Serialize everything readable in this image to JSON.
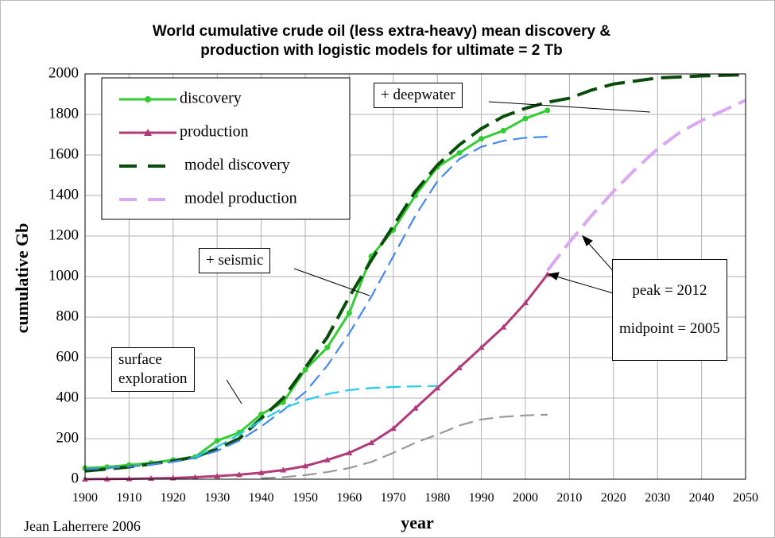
{
  "chart_data": {
    "type": "line",
    "title": "World cumulative crude oil (less extra-heavy) mean discovery &\nproduction with logistic models for ultimate = 2 Tb",
    "x_label": "year",
    "y_label": "cumulative Gb",
    "x": [
      1900,
      1905,
      1910,
      1915,
      1920,
      1925,
      1930,
      1935,
      1940,
      1945,
      1950,
      1955,
      1960,
      1965,
      1970,
      1975,
      1980,
      1985,
      1990,
      1995,
      2000,
      2005,
      2010,
      2015,
      2020,
      2025,
      2030,
      2035,
      2040,
      2045,
      2050
    ],
    "series": [
      {
        "name": "discovery",
        "color": "#33cc33",
        "style": "solid",
        "marker": "circle",
        "values": [
          55,
          60,
          70,
          80,
          95,
          110,
          190,
          230,
          320,
          380,
          540,
          650,
          820,
          1100,
          1230,
          1400,
          1540,
          1610,
          1680,
          1720,
          1780,
          1820,
          null,
          null,
          null,
          null,
          null,
          null,
          null,
          null,
          null
        ]
      },
      {
        "name": "production",
        "color": "#b03a7a",
        "style": "solid",
        "marker": "triangle",
        "values": [
          0,
          1,
          2,
          4,
          6,
          10,
          15,
          22,
          32,
          45,
          65,
          95,
          130,
          180,
          250,
          350,
          450,
          550,
          650,
          750,
          870,
          1010,
          null,
          null,
          null,
          null,
          null,
          null,
          null,
          null,
          null
        ]
      },
      {
        "name": "model discovery",
        "color": "#0a4d0a",
        "style": "dashed",
        "values": [
          40,
          50,
          60,
          75,
          90,
          110,
          150,
          200,
          300,
          400,
          550,
          700,
          900,
          1080,
          1250,
          1420,
          1550,
          1650,
          1730,
          1790,
          1830,
          1860,
          1880,
          1920,
          1950,
          1965,
          1980,
          1985,
          1990,
          1993,
          1995
        ]
      },
      {
        "name": "model production",
        "color": "#d9a8f0",
        "style": "dashed",
        "values": [
          null,
          null,
          null,
          null,
          null,
          null,
          null,
          null,
          null,
          null,
          null,
          null,
          null,
          null,
          null,
          null,
          null,
          null,
          null,
          null,
          null,
          1030,
          1170,
          1300,
          1420,
          1530,
          1630,
          1710,
          1770,
          1820,
          1870
        ]
      },
      {
        "color": "#4488ee",
        "style": "dashed",
        "values": [
          50,
          55,
          62,
          72,
          85,
          105,
          140,
          190,
          260,
          340,
          430,
          560,
          720,
          900,
          1100,
          1300,
          1470,
          1580,
          1640,
          1670,
          1685,
          1690,
          null,
          null,
          null,
          null,
          null,
          null,
          null,
          null,
          null
        ]
      },
      {
        "color": "#22ccee",
        "style": "dashed",
        "values": [
          null,
          null,
          null,
          null,
          null,
          110,
          160,
          220,
          290,
          350,
          390,
          420,
          440,
          450,
          455,
          458,
          460,
          null,
          null,
          null,
          null,
          null,
          null,
          null,
          null,
          null,
          null,
          null,
          null,
          null,
          null
        ]
      },
      {
        "color": "#999999",
        "style": "dashed",
        "values": [
          null,
          null,
          null,
          null,
          null,
          null,
          null,
          null,
          5,
          10,
          20,
          35,
          55,
          85,
          130,
          180,
          220,
          265,
          295,
          308,
          315,
          318,
          null,
          null,
          null,
          null,
          null,
          null,
          null,
          null,
          null
        ]
      }
    ],
    "xlim": [
      1900,
      2050
    ],
    "xticks": [
      1900,
      1910,
      1920,
      1930,
      1940,
      1950,
      1960,
      1970,
      1980,
      1990,
      2000,
      2010,
      2020,
      2030,
      2040,
      2050
    ],
    "ylim": [
      0,
      2000
    ],
    "yticks": [
      0,
      200,
      400,
      600,
      800,
      1000,
      1200,
      1400,
      1600,
      1800,
      2000
    ],
    "grid": true,
    "legend": "upper left",
    "annotations": [
      "+ deepwater",
      "+ seismic",
      "surface\nexploration",
      "peak = 2012",
      "midpoint = 2005"
    ],
    "author": "Jean Laherrere 2006"
  }
}
